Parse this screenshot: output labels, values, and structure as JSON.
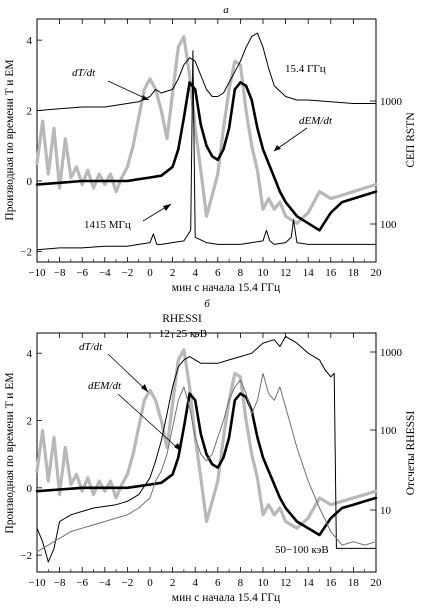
{
  "figure": {
    "panel_a_letter": "a",
    "panel_b_letter": "б"
  },
  "chart_data": [
    {
      "type": "line",
      "panel": "a",
      "xlabel": "мин с начала 15.4 ГГц",
      "ylabel_left": "Производная по времени T и EM",
      "ylabel_right": "СЕП RSTN",
      "xlim": [
        -10,
        20
      ],
      "ylim_left": [
        -2.3,
        4.6
      ],
      "y_right_scale": "log",
      "x_ticks": [
        -10,
        -8,
        -6,
        -4,
        -2,
        0,
        2,
        4,
        6,
        8,
        10,
        12,
        14,
        16,
        18,
        20
      ],
      "x_tick_labels": [
        "−10",
        "−8",
        "−6",
        "−4",
        "−2",
        "0",
        "2",
        "4",
        "6",
        "8",
        "10",
        "12",
        "14",
        "16",
        "18",
        "20"
      ],
      "y_ticks_left": [
        -2,
        0,
        2,
        4
      ],
      "y_tick_labels_left": [
        "−2",
        "0",
        "2",
        "4"
      ],
      "y_ticks_right": [
        100,
        1000
      ],
      "y_tick_labels_right": [
        "100",
        "1000"
      ],
      "annotations": {
        "dT": "dT/dt",
        "dEM": "dEM/dt",
        "f154": "15.4 ГГц",
        "f1415": "1415 МГц"
      },
      "series": [
        {
          "name": "dT/dt",
          "color": "#b8b8b8",
          "x": [
            -10,
            -9.5,
            -9,
            -8.5,
            -8,
            -7.5,
            -7,
            -6.5,
            -6,
            -5.5,
            -5,
            -4.5,
            -4,
            -3.5,
            -3,
            -2.5,
            -2,
            -1.5,
            -1,
            -0.5,
            0,
            0.5,
            1,
            1.5,
            2,
            2.5,
            3,
            3.5,
            4,
            4.5,
            5,
            5.5,
            6,
            6.5,
            7,
            7.5,
            8,
            8.5,
            9,
            9.5,
            10,
            10.5,
            11,
            11.5,
            12,
            13,
            14,
            15,
            16,
            17,
            18,
            19,
            20
          ],
          "y": [
            0.5,
            1.7,
            0.2,
            1.5,
            -0.2,
            1.2,
            0.1,
            0.4,
            -0.1,
            0.3,
            -0.2,
            0.2,
            -0.1,
            0.2,
            -0.3,
            0.1,
            0.4,
            1.0,
            1.8,
            2.6,
            2.9,
            2.6,
            2.0,
            1.2,
            2.5,
            3.8,
            4.1,
            3.0,
            1.5,
            0.3,
            -1.0,
            -0.4,
            0.2,
            1.5,
            2.6,
            3.4,
            3.3,
            2.0,
            1.0,
            0.3,
            -0.8,
            -0.5,
            -0.8,
            -0.6,
            -1.0,
            -1.2,
            -0.9,
            -0.3,
            -0.5,
            -0.4,
            -0.3,
            -0.2,
            -0.1
          ]
        },
        {
          "name": "dEM/dt",
          "color": "#000000",
          "x": [
            -10,
            -8,
            -6,
            -4,
            -2,
            -1,
            0,
            1,
            2,
            2.5,
            3,
            3.5,
            4,
            4.5,
            5,
            5.5,
            6,
            6.5,
            7,
            7.5,
            8,
            8.5,
            9,
            9.5,
            10,
            10.5,
            11,
            11.5,
            12,
            13,
            14,
            15,
            16,
            17,
            18,
            19,
            20
          ],
          "y": [
            -0.1,
            -0.05,
            0,
            0,
            0,
            0.05,
            0.1,
            0.15,
            0.4,
            0.9,
            1.8,
            2.8,
            2.6,
            1.6,
            1.0,
            0.7,
            0.6,
            0.9,
            1.5,
            2.6,
            2.8,
            2.7,
            2.3,
            1.5,
            0.9,
            0.5,
            0.1,
            -0.3,
            -0.6,
            -1.0,
            -1.2,
            -1.4,
            -0.9,
            -0.6,
            -0.5,
            -0.4,
            -0.3
          ]
        },
        {
          "name": "15.4 ГГц",
          "color": "#000000",
          "x": [
            -10,
            -8,
            -6,
            -4,
            -2,
            -1,
            0,
            0.5,
            1,
            2,
            2.5,
            3,
            3.5,
            4,
            4.5,
            5,
            5.5,
            6,
            6.5,
            7,
            7.5,
            8,
            8.5,
            9,
            9.5,
            10,
            10.5,
            11,
            12,
            13,
            14,
            16,
            18,
            20
          ],
          "y": [
            2.0,
            2.05,
            2.1,
            2.1,
            2.2,
            2.25,
            2.4,
            2.6,
            2.5,
            2.6,
            2.9,
            3.3,
            3.5,
            3.4,
            3.0,
            2.6,
            2.4,
            2.4,
            2.5,
            2.8,
            3.1,
            3.4,
            3.8,
            4.1,
            4.2,
            3.8,
            3.2,
            2.7,
            2.4,
            2.3,
            2.3,
            2.25,
            2.2,
            2.2
          ]
        },
        {
          "name": "1415 МГц",
          "color": "#000000",
          "x": [
            -10,
            -8,
            -6,
            -4,
            -2,
            -1,
            0,
            0.3,
            0.6,
            1,
            2,
            3,
            3.6,
            3.8,
            4.0,
            5,
            6,
            7,
            8,
            9,
            10,
            10.3,
            10.6,
            11,
            12,
            12.5,
            12.7,
            13,
            14,
            16,
            18,
            20
          ],
          "y": [
            -1.95,
            -1.9,
            -1.9,
            -1.85,
            -1.85,
            -1.8,
            -1.75,
            -1.5,
            -1.8,
            -1.8,
            -1.75,
            -1.7,
            -1.4,
            3.7,
            -1.6,
            -1.75,
            -1.8,
            -1.8,
            -1.8,
            -1.75,
            -1.7,
            -1.4,
            -1.7,
            -1.8,
            -1.75,
            -1.6,
            -1.1,
            -1.75,
            -1.8,
            -1.8,
            -1.8,
            -1.8
          ]
        }
      ]
    },
    {
      "type": "line",
      "panel": "б",
      "title": "RHESSI",
      "xlabel": "мин с начала 15.4 ГГц",
      "ylabel_left": "Производная по времени T и EM",
      "ylabel_right": "Отсчеты RHESSI",
      "xlim": [
        -10,
        20
      ],
      "ylim_left": [
        -2.5,
        4.6
      ],
      "y_right_scale": "log",
      "x_ticks": [
        -10,
        -8,
        -6,
        -4,
        -2,
        0,
        2,
        4,
        6,
        8,
        10,
        12,
        14,
        16,
        18,
        20
      ],
      "x_tick_labels": [
        "−10",
        "−8",
        "−6",
        "−4",
        "−2",
        "0",
        "2",
        "4",
        "6",
        "8",
        "10",
        "12",
        "14",
        "16",
        "18",
        "20"
      ],
      "y_ticks_left": [
        -2,
        0,
        2,
        4
      ],
      "y_tick_labels_left": [
        "−2",
        "0",
        "2",
        "4"
      ],
      "y_ticks_right": [
        10,
        100,
        1000
      ],
      "y_tick_labels_right": [
        "10",
        "100",
        "1000"
      ],
      "annotations": {
        "low": "12−25 кэВ",
        "dT": "dT/dt",
        "dEM": "dEM/dt",
        "high": "50−100 кэВ"
      },
      "series": [
        {
          "name": "dT/dt",
          "color": "#b8b8b8",
          "x": [
            -10,
            -9.5,
            -9,
            -8.5,
            -8,
            -7.5,
            -7,
            -6.5,
            -6,
            -5.5,
            -5,
            -4.5,
            -4,
            -3.5,
            -3,
            -2.5,
            -2,
            -1.5,
            -1,
            -0.5,
            0,
            0.5,
            1,
            1.5,
            2,
            2.5,
            3,
            3.5,
            4,
            4.5,
            5,
            5.5,
            6,
            6.5,
            7,
            7.5,
            8,
            8.5,
            9,
            9.5,
            10,
            10.5,
            11,
            11.5,
            12,
            13,
            14,
            15,
            16,
            17,
            18,
            19,
            20
          ],
          "y": [
            0.5,
            1.7,
            0.2,
            1.5,
            -0.2,
            1.2,
            0.1,
            0.4,
            -0.1,
            0.3,
            -0.2,
            0.2,
            -0.1,
            0.2,
            -0.3,
            0.1,
            0.4,
            1.0,
            1.8,
            2.6,
            2.9,
            2.6,
            2.0,
            1.2,
            2.5,
            3.8,
            4.1,
            3.0,
            1.5,
            0.3,
            -1.0,
            -0.4,
            0.2,
            1.5,
            2.6,
            3.4,
            3.3,
            2.0,
            1.0,
            0.3,
            -0.8,
            -0.5,
            -0.8,
            -0.6,
            -1.0,
            -1.2,
            -0.9,
            -0.3,
            -0.5,
            -0.4,
            -0.3,
            -0.2,
            -0.1
          ]
        },
        {
          "name": "dEM/dt",
          "color": "#000000",
          "x": [
            -10,
            -8,
            -6,
            -4,
            -2,
            -1,
            0,
            1,
            2,
            2.5,
            3,
            3.5,
            4,
            4.5,
            5,
            5.5,
            6,
            6.5,
            7,
            7.5,
            8,
            8.5,
            9,
            9.5,
            10,
            10.5,
            11,
            11.5,
            12,
            13,
            14,
            15,
            16,
            17,
            18,
            19,
            20
          ],
          "y": [
            -0.1,
            -0.05,
            0,
            0,
            0,
            0.05,
            0.1,
            0.15,
            0.4,
            0.9,
            1.8,
            2.8,
            2.6,
            1.6,
            1.0,
            0.7,
            0.6,
            0.9,
            1.5,
            2.6,
            2.8,
            2.7,
            2.3,
            1.5,
            0.9,
            0.5,
            0.1,
            -0.3,
            -0.6,
            -1.0,
            -1.2,
            -1.4,
            -0.9,
            -0.6,
            -0.5,
            -0.4,
            -0.3
          ]
        },
        {
          "name": "12−25 кэВ",
          "color": "#000000",
          "x": [
            -10,
            -9.5,
            -9,
            -8.5,
            -8,
            -7,
            -6,
            -5,
            -4,
            -3,
            -2,
            -1,
            0,
            0.5,
            1,
            1.5,
            2,
            2.5,
            3,
            3.5,
            4,
            4.5,
            5,
            6,
            7,
            8,
            9,
            10,
            11,
            11.5,
            12,
            13,
            14,
            15,
            15.5,
            16,
            16.3,
            16.5,
            17,
            18,
            19,
            20
          ],
          "y": [
            -1.2,
            -1.6,
            -2.2,
            -1.8,
            -1.0,
            -0.8,
            -0.7,
            -0.6,
            -0.55,
            -0.5,
            -0.4,
            -0.2,
            0.3,
            0.8,
            1.4,
            2.2,
            3.0,
            3.6,
            3.8,
            3.9,
            3.8,
            3.7,
            3.7,
            3.7,
            3.8,
            3.9,
            4.0,
            4.3,
            4.4,
            4.2,
            4.5,
            4.3,
            4.0,
            3.8,
            3.5,
            3.3,
            3.4,
            -1.8,
            -1.8,
            -1.8,
            -1.8,
            -1.8
          ]
        },
        {
          "name": "50−100 кэВ",
          "color": "#707070",
          "x": [
            -10,
            -9,
            -8,
            -7,
            -6,
            -5,
            -4,
            -3,
            -2,
            -1,
            0,
            0.5,
            1,
            1.5,
            2,
            2.5,
            3,
            3.5,
            4,
            4.5,
            5,
            5.5,
            6,
            6.5,
            7,
            7.5,
            8,
            8.5,
            9,
            9.5,
            10,
            10.5,
            11,
            11.5,
            12,
            12.5,
            13,
            14,
            15,
            16,
            16.5,
            17,
            18,
            19,
            20
          ],
          "y": [
            -1.9,
            -1.7,
            -1.5,
            -1.3,
            -1.2,
            -1.1,
            -1.0,
            -0.9,
            -0.8,
            -0.6,
            -0.3,
            0.2,
            0.5,
            1.0,
            1.8,
            2.6,
            3.0,
            2.4,
            1.5,
            1.0,
            0.8,
            1.0,
            1.5,
            2.0,
            2.6,
            3.0,
            3.2,
            2.8,
            2.2,
            2.6,
            3.4,
            2.8,
            2.6,
            3.0,
            2.4,
            1.8,
            1.2,
            0.2,
            -0.6,
            -1.3,
            -1.5,
            -1.7,
            -1.6,
            -1.7,
            -1.6
          ]
        }
      ]
    }
  ]
}
